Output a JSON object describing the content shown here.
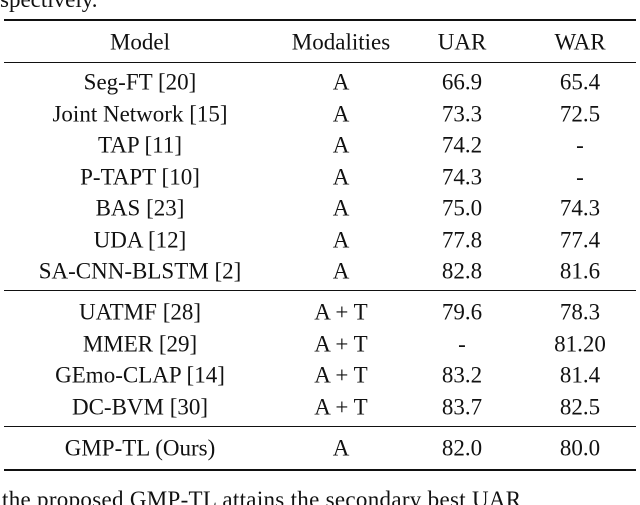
{
  "preceding_text": "spectively.",
  "table": {
    "header": [
      "Model",
      "Modalities",
      "UAR",
      "WAR"
    ],
    "groups": [
      [
        [
          "Seg-FT [20]",
          "A",
          "66.9",
          "65.4"
        ],
        [
          "Joint Network [15]",
          "A",
          "73.3",
          "72.5"
        ],
        [
          "TAP [11]",
          "A",
          "74.2",
          "-"
        ],
        [
          "P-TAPT [10]",
          "A",
          "74.3",
          "-"
        ],
        [
          "BAS [23]",
          "A",
          "75.0",
          "74.3"
        ],
        [
          "UDA [12]",
          "A",
          "77.8",
          "77.4"
        ],
        [
          "SA-CNN-BLSTM [2]",
          "A",
          "82.8",
          "81.6"
        ]
      ],
      [
        [
          "UATMF [28]",
          "A + T",
          "79.6",
          "78.3"
        ],
        [
          "MMER [29]",
          "A + T",
          "-",
          "81.20"
        ],
        [
          "GEmo-CLAP [14]",
          "A + T",
          "83.2",
          "81.4"
        ],
        [
          "DC-BVM [30]",
          "A + T",
          "83.7",
          "82.5"
        ]
      ],
      [
        [
          "GMP-TL (Ours)",
          "A",
          "82.0",
          "80.0"
        ]
      ]
    ]
  },
  "following_text": "the proposed GMP-TL attains the secondary best UAR"
}
